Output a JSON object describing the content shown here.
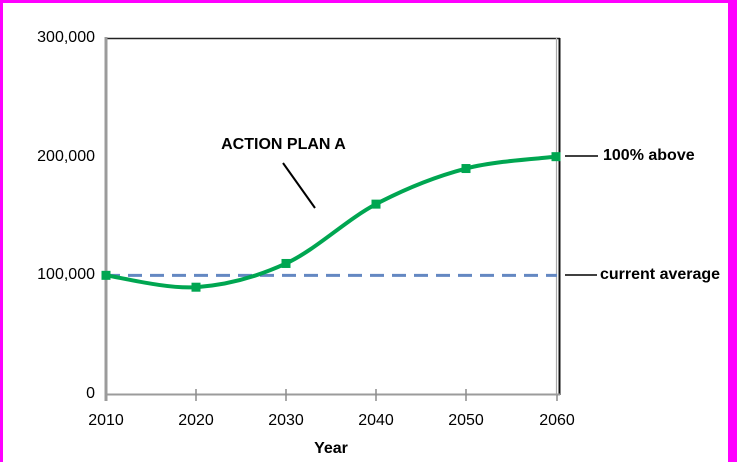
{
  "window": {
    "border_color": "#ff00ff",
    "background_color": "#ffffff"
  },
  "chart_data": {
    "type": "line",
    "xlabel": "Year",
    "xlim": [
      2010,
      2060
    ],
    "ylim": [
      0,
      300000
    ],
    "grid": false,
    "legend": "none",
    "x": [
      2010,
      2020,
      2030,
      2040,
      2050,
      2060
    ],
    "xtick_labels": [
      "2010",
      "2020",
      "2030",
      "2040",
      "2050",
      "2060"
    ],
    "yticks": [
      0,
      100000,
      200000,
      300000
    ],
    "ytick_labels": [
      "0",
      "100,000",
      "200,000",
      "300,000"
    ],
    "series": [
      {
        "name": "ACTION PLAN A",
        "line_style": "smooth",
        "marker": "square",
        "color": "#00a651",
        "values": [
          100000,
          90000,
          110000,
          160000,
          190000,
          200000
        ]
      }
    ],
    "reference_line": {
      "label": "current average",
      "value": 100000,
      "style": "dashed",
      "color": "#6488c2"
    },
    "annotations": [
      {
        "id": "action-plan-label",
        "text": "ACTION PLAN A",
        "points_to": "curve"
      },
      {
        "id": "pct-above-label",
        "text": "100% above",
        "attached_to": "last point (2060, 200000)"
      },
      {
        "id": "current-average-label",
        "text": "current average",
        "attached_to": "reference line at 100000"
      }
    ]
  }
}
